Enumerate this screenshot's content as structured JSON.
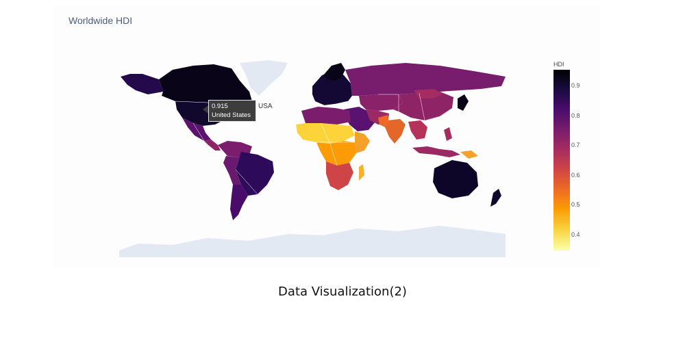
{
  "chart_data": {
    "type": "choropleth",
    "title": "Worldwide HDI",
    "colorbar": {
      "title": "HDI",
      "ticks": [
        "0.9",
        "0.8",
        "0.7",
        "0.6",
        "0.5",
        "0.4"
      ],
      "range": [
        0.33,
        0.95
      ],
      "colorscale": "inferno (reversed)",
      "colors": [
        "#fcffa4",
        "#f7d13d",
        "#fb9b06",
        "#ed6925",
        "#cf4446",
        "#a52c60",
        "#781c6d",
        "#4a0c6b",
        "#1b0c41",
        "#000004"
      ]
    },
    "hover": {
      "value": "0.915",
      "country": "United States",
      "code": "USA"
    }
  },
  "caption": "Data Visualization(2)"
}
